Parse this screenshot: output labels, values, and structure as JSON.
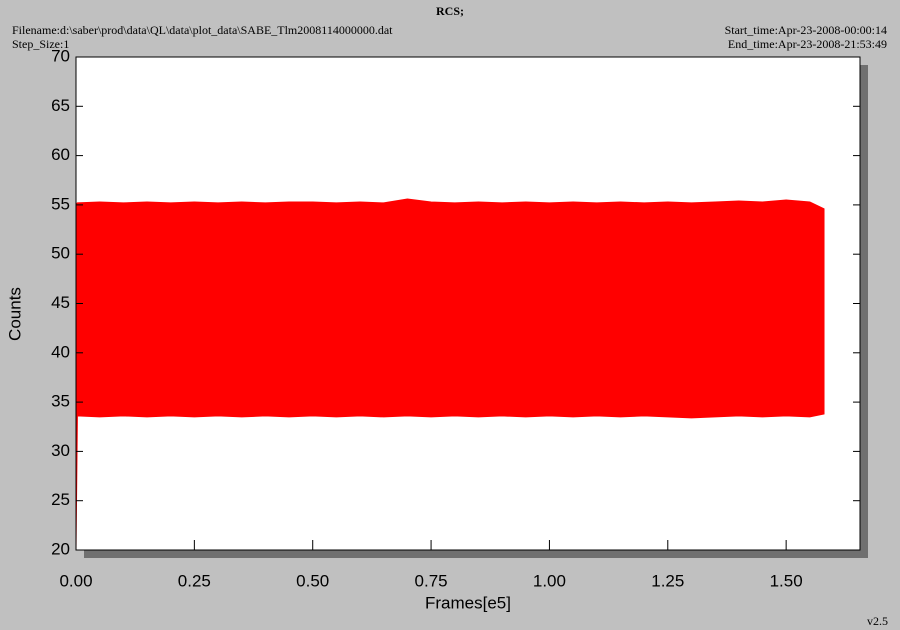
{
  "chart_data": {
    "type": "range-area",
    "title": "RCS;",
    "filename": "Filename:d:\\saber\\prod\\data\\QL\\data\\plot_data\\SABE_Tlm2008114000000.dat",
    "step_size": "Step_Size:1",
    "start_time": "Start_time:Apr-23-2008-00:00:14",
    "end_time": "End_time:Apr-23-2008-21:53:49",
    "version": "v2.5",
    "x_label": "Frames[e5]",
    "y_label": "Counts",
    "color": "#ff0000",
    "x": [
      0,
      0.003,
      0.05,
      0.1,
      0.15,
      0.2,
      0.25,
      0.3,
      0.35,
      0.4,
      0.45,
      0.5,
      0.55,
      0.6,
      0.65,
      0.7,
      0.75,
      0.8,
      0.85,
      0.9,
      0.95,
      1.0,
      1.05,
      1.1,
      1.15,
      1.2,
      1.25,
      1.3,
      1.35,
      1.4,
      1.45,
      1.5,
      1.55,
      1.58
    ],
    "high": [
      55.1,
      55.2,
      55.3,
      55.2,
      55.3,
      55.2,
      55.3,
      55.2,
      55.3,
      55.2,
      55.3,
      55.3,
      55.2,
      55.3,
      55.2,
      55.6,
      55.3,
      55.2,
      55.3,
      55.2,
      55.3,
      55.2,
      55.3,
      55.2,
      55.3,
      55.2,
      55.3,
      55.2,
      55.3,
      55.4,
      55.3,
      55.5,
      55.3,
      54.6
    ],
    "low": [
      20,
      33.6,
      33.5,
      33.6,
      33.5,
      33.6,
      33.5,
      33.6,
      33.5,
      33.6,
      33.5,
      33.6,
      33.5,
      33.6,
      33.5,
      33.6,
      33.5,
      33.6,
      33.5,
      33.6,
      33.5,
      33.6,
      33.5,
      33.6,
      33.5,
      33.6,
      33.5,
      33.4,
      33.5,
      33.6,
      33.5,
      33.6,
      33.5,
      33.8
    ],
    "xlim": [
      0,
      1.656
    ],
    "ylim": [
      20,
      70
    ],
    "xticks": [
      {
        "value": 0,
        "label": "0.00"
      },
      {
        "value": 0.25,
        "label": "0.25"
      },
      {
        "value": 0.5,
        "label": "0.50"
      },
      {
        "value": 0.75,
        "label": "0.75"
      },
      {
        "value": 1,
        "label": "1.00"
      },
      {
        "value": 1.25,
        "label": "1.25"
      },
      {
        "value": 1.5,
        "label": "1.50"
      }
    ],
    "yticks": [
      20,
      25,
      30,
      35,
      40,
      45,
      50,
      55,
      60,
      65,
      70
    ]
  }
}
